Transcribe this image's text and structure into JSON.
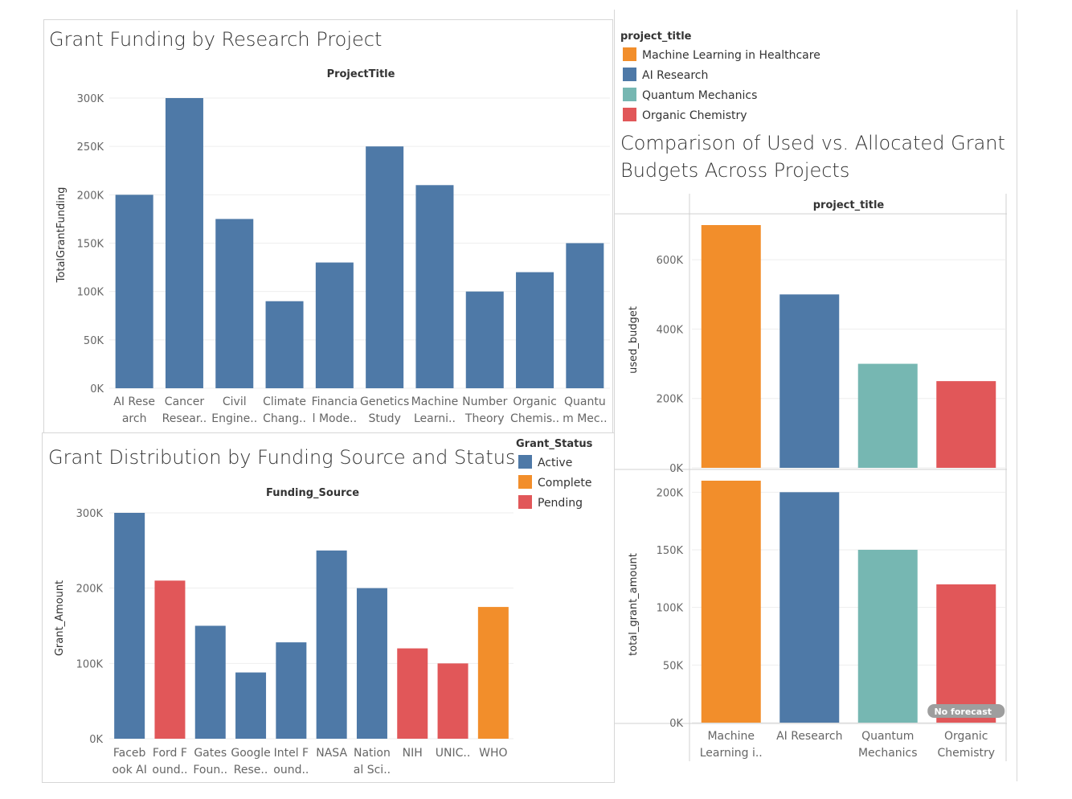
{
  "chart_data": [
    {
      "type": "bar",
      "title": "Grant Funding by Research Project",
      "column_header": "ProjectTitle",
      "ylabel": "TotalGrantFunding",
      "ylim": [
        0,
        300000
      ],
      "yticks": [
        "0K",
        "50K",
        "100K",
        "150K",
        "200K",
        "250K",
        "300K"
      ],
      "ytick_values": [
        0,
        50000,
        100000,
        150000,
        200000,
        250000,
        300000
      ],
      "categories": [
        [
          "AI Rese",
          "arch"
        ],
        [
          "Cancer",
          "Resear.."
        ],
        [
          "Civil",
          "Engine.."
        ],
        [
          "Climate",
          "Chang.."
        ],
        [
          "Financia",
          "l Mode.."
        ],
        [
          "Genetics",
          "Study"
        ],
        [
          "Machine",
          "Learni.."
        ],
        [
          "Number",
          "Theory"
        ],
        [
          "Organic",
          "Chemis.."
        ],
        [
          "Quantu",
          "m Mec.."
        ]
      ],
      "values": [
        200000,
        300000,
        175000,
        90000,
        130000,
        250000,
        210000,
        100000,
        120000,
        150000
      ],
      "color": "#4e79a7"
    },
    {
      "type": "bar",
      "title": "Grant Distribution by Funding Source and Status",
      "column_header": "Funding_Source",
      "ylabel": "Grant_Amount",
      "ylim": [
        0,
        300000
      ],
      "yticks": [
        "0K",
        "100K",
        "200K",
        "300K"
      ],
      "ytick_values": [
        0,
        100000,
        200000,
        300000
      ],
      "categories": [
        [
          "Faceb",
          "ook AI"
        ],
        [
          "Ford F",
          "ound.."
        ],
        [
          "Gates",
          "Foun.."
        ],
        [
          "Google",
          "Rese.."
        ],
        [
          "Intel F",
          "ound.."
        ],
        [
          "NASA",
          ""
        ],
        [
          "Nation",
          "al Sci.."
        ],
        [
          "NIH",
          ""
        ],
        [
          "UNIC..",
          ""
        ],
        [
          "WHO",
          ""
        ]
      ],
      "values": [
        300000,
        210000,
        150000,
        88000,
        128000,
        250000,
        200000,
        120000,
        100000,
        175000
      ],
      "status": [
        "Active",
        "Pending",
        "Active",
        "Active",
        "Active",
        "Active",
        "Active",
        "Pending",
        "Pending",
        "Complete"
      ],
      "legend": {
        "title": "Grant_Status",
        "items": [
          {
            "label": "Active",
            "color": "#4e79a7"
          },
          {
            "label": "Complete",
            "color": "#f28e2b"
          },
          {
            "label": "Pending",
            "color": "#e15759"
          }
        ]
      }
    },
    {
      "type": "bar",
      "title_lines": [
        "Comparison of Used vs. Allocated Grant",
        "Budgets Across Projects"
      ],
      "column_header": "project_title",
      "categories": [
        [
          "Machine",
          "Learning i.."
        ],
        [
          "AI Research",
          ""
        ],
        [
          "Quantum",
          "Mechanics"
        ],
        [
          "Organic",
          "Chemistry"
        ]
      ],
      "colors": [
        "#f28e2b",
        "#4e79a7",
        "#76b7b2",
        "#e15759"
      ],
      "legend": {
        "title": "project_title",
        "items": [
          {
            "label": "Machine Learning in Healthcare",
            "color": "#f28e2b"
          },
          {
            "label": "AI Research",
            "color": "#4e79a7"
          },
          {
            "label": "Quantum Mechanics",
            "color": "#76b7b2"
          },
          {
            "label": "Organic Chemistry",
            "color": "#e15759"
          }
        ]
      },
      "series": [
        {
          "name": "used_budget",
          "ylim": [
            0,
            700000
          ],
          "yticks": [
            "0K",
            "200K",
            "400K",
            "600K"
          ],
          "ytick_values": [
            0,
            200000,
            400000,
            600000
          ],
          "values": [
            700000,
            500000,
            300000,
            250000
          ]
        },
        {
          "name": "total_grant_amount",
          "ylim": [
            0,
            210000
          ],
          "yticks": [
            "0K",
            "50K",
            "100K",
            "150K",
            "200K"
          ],
          "ytick_values": [
            0,
            50000,
            100000,
            150000,
            200000
          ],
          "values": [
            210000,
            200000,
            150000,
            120000
          ]
        }
      ],
      "badge": "No forecast"
    }
  ]
}
